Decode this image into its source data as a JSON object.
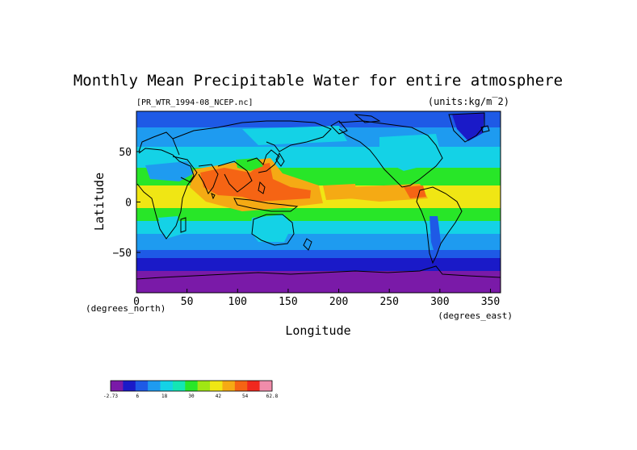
{
  "title": "Monthly Mean Precipitable Water for entire atmosphere",
  "file_label": "[PR_WTR_1994-08_NCEP.nc]",
  "units_label": "(units:kg/m^2)",
  "units_display": "(units:kg/m‾2)",
  "ylabel": "Latitude",
  "xlabel": "Longitude",
  "y_units": "(degrees_north)",
  "x_units": "(degrees_east)",
  "chart_data": {
    "type": "heatmap",
    "x_ticks": [
      "0",
      "50",
      "100",
      "150",
      "200",
      "250",
      "300",
      "350"
    ],
    "x_tick_values": [
      0,
      50,
      100,
      150,
      200,
      250,
      300,
      350
    ],
    "y_ticks": [
      "50",
      "0",
      "−50"
    ],
    "y_tick_values": [
      50,
      0,
      -50
    ],
    "xlim": [
      0,
      360
    ],
    "ylim": [
      -90,
      90
    ],
    "colorbar": {
      "labels": [
        "-2.73",
        "6",
        "18",
        "30",
        "42",
        "54",
        "62.8"
      ],
      "colors": [
        "#7a1aa8",
        "#1a1ac8",
        "#1e5ae6",
        "#1e9bf0",
        "#14d2e6",
        "#14e6b4",
        "#28e628",
        "#a0e614",
        "#f0e614",
        "#f5aa14",
        "#f56414",
        "#f0281e",
        "#f08caa"
      ]
    }
  }
}
